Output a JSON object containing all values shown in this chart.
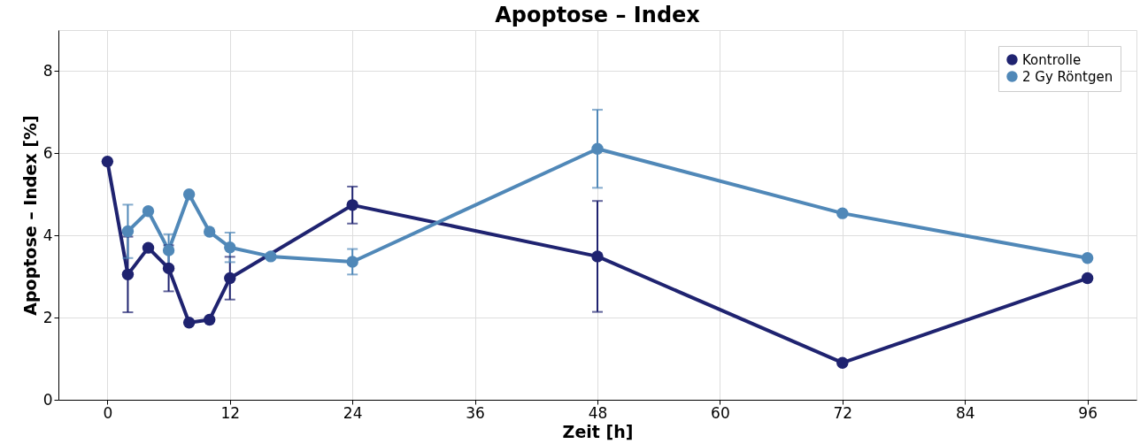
{
  "chart_data": {
    "type": "line",
    "title": "Apoptose – Index",
    "xlabel": "Zeit [h]",
    "ylabel": "Apoptose – Index [%]",
    "xlim": [
      -4.8,
      100.8
    ],
    "xticks": [
      0,
      12,
      24,
      36,
      48,
      60,
      72,
      84,
      96
    ],
    "ylim": [
      0,
      9
    ],
    "yticks": [
      0,
      2,
      4,
      6,
      8
    ],
    "grid": true,
    "legend": "top right",
    "marker": "circle",
    "line_style": "solid",
    "series": [
      {
        "name": "Kontrolle",
        "color": "#1f2370",
        "x": [
          0,
          2,
          4,
          6,
          8,
          10,
          12,
          24,
          48,
          72,
          96
        ],
        "values": [
          5.8,
          3.05,
          3.7,
          3.2,
          1.88,
          1.95,
          2.96,
          4.74,
          3.49,
          0.9,
          2.96
        ],
        "errors": [
          null,
          0.92,
          null,
          0.56,
          null,
          null,
          0.52,
          0.45,
          1.35,
          null,
          null
        ]
      },
      {
        "name": "2 Gy Röntgen",
        "color": "#5088b8",
        "x": [
          2,
          4,
          6,
          8,
          10,
          12,
          16,
          24,
          48,
          72,
          96
        ],
        "values": [
          4.1,
          4.59,
          3.64,
          5.0,
          4.09,
          3.71,
          3.49,
          3.36,
          6.11,
          4.54,
          3.45
        ],
        "errors": [
          0.65,
          null,
          0.39,
          null,
          null,
          0.36,
          null,
          0.31,
          0.95,
          null,
          null
        ]
      }
    ]
  }
}
